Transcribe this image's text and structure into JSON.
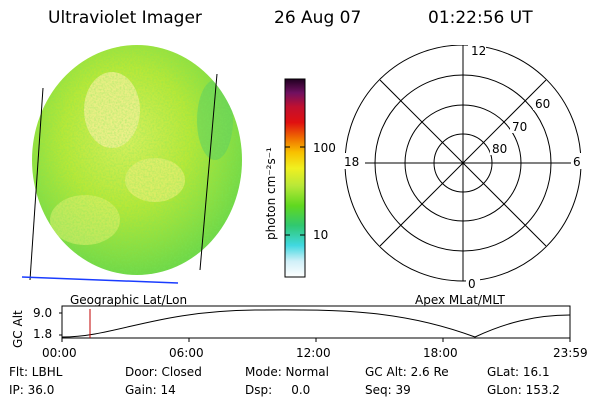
{
  "header": {
    "instrument": "Ultraviolet Imager",
    "date": "26 Aug 07",
    "time": "01:22:56 UT"
  },
  "colorbar": {
    "unit": "photon cm⁻²s⁻¹",
    "ticks": [
      {
        "label": "100",
        "value": 100
      },
      {
        "label": "10",
        "value": 10
      }
    ]
  },
  "polar": {
    "mlt_labels": [
      {
        "label": "12",
        "mlt": 12
      },
      {
        "label": "18",
        "mlt": 18
      },
      {
        "label": "6",
        "mlt": 6
      },
      {
        "label": "0",
        "mlt": 0
      }
    ],
    "lat_labels": [
      {
        "label": "60",
        "lat": 60
      },
      {
        "label": "70",
        "lat": 70
      },
      {
        "label": "80",
        "lat": 80
      }
    ]
  },
  "map_labels": {
    "left": "Geographic Lat/Lon",
    "right": "Apex MLat/MLT"
  },
  "timeline": {
    "ylabel": "GC Alt",
    "yticks": [
      "9.0",
      "1.8"
    ],
    "xticks": [
      "00:00",
      "06:00",
      "12:00",
      "18:00",
      "23:59"
    ],
    "current_time": "01:22:56"
  },
  "footer": {
    "rows": [
      [
        "Flt: LBHL",
        "Door: Closed",
        "Mode: Normal",
        "GC Alt: 2.6 Re",
        "GLat: 16.1"
      ],
      [
        "IP: 36.0",
        "Gain: 14",
        "Dsp:     0.0",
        "Seq: 39",
        "GLon: 153.2"
      ]
    ]
  },
  "colors": {
    "earth_disk": "#b8e838",
    "bright_region": "#f0f090",
    "terminator_line": "#000000",
    "horizon_line": "#1a3cff",
    "marker": "#c00000"
  }
}
